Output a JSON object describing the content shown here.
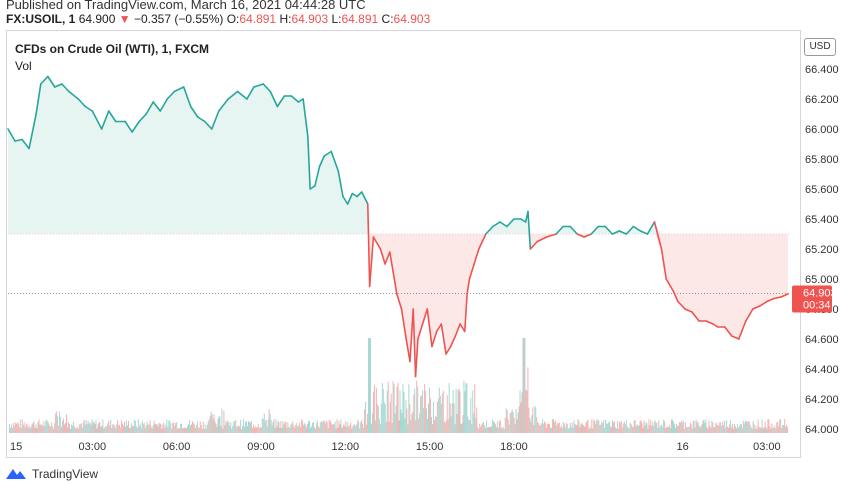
{
  "published": "Published on TradingView.com, March 16, 2021 04:44:28 UTC",
  "header": {
    "symbol": "FX:USOIL, 1",
    "last": "64.900",
    "change": "−0.357 (−0.55%)",
    "o_label": "O:",
    "o_value": "64.891",
    "h_label": "H:",
    "h_value": "64.903",
    "l_label": "L:",
    "l_value": "64.891",
    "c_label": "C:",
    "c_value": "64.903"
  },
  "legend": {
    "title": "CFDs on Crude Oil (WTI), 1, FXCM",
    "vol_label": "Vol"
  },
  "currency": "USD",
  "footer": {
    "brand": "TradingView"
  },
  "colors": {
    "up": "#26a69a",
    "down": "#ef5350",
    "area_up": "#e6f4f2",
    "area_down": "#fde8e8",
    "grid_dotted": "#999999"
  },
  "chart_data": {
    "type": "line",
    "ylim": [
      64.0,
      66.5
    ],
    "y_ticks": [
      64.0,
      64.2,
      64.4,
      64.6,
      64.8,
      65.0,
      65.2,
      65.4,
      65.6,
      65.8,
      66.0,
      66.2,
      66.4
    ],
    "y_tick_labels": [
      "64.000",
      "64.200",
      "64.400",
      "64.600",
      "64.800",
      "65.000",
      "65.200",
      "65.400",
      "65.600",
      "65.800",
      "66.000",
      "66.200",
      "66.400"
    ],
    "x_ticks": [
      {
        "label": "15",
        "t": 0
      },
      {
        "label": "03:00",
        "t": 180
      },
      {
        "label": "06:00",
        "t": 360
      },
      {
        "label": "09:00",
        "t": 540
      },
      {
        "label": "12:00",
        "t": 720
      },
      {
        "label": "15:00",
        "t": 900
      },
      {
        "label": "18:00",
        "t": 1080
      },
      {
        "label": "16",
        "t": 1440
      },
      {
        "label": "03:00",
        "t": 1620
      }
    ],
    "baseline": 65.3,
    "last_price": "64.903",
    "countdown": "00:34",
    "price_points": [
      [
        0,
        66.0
      ],
      [
        15,
        65.92
      ],
      [
        30,
        65.93
      ],
      [
        45,
        65.87
      ],
      [
        60,
        66.1
      ],
      [
        70,
        66.3
      ],
      [
        85,
        66.35
      ],
      [
        100,
        66.28
      ],
      [
        115,
        66.3
      ],
      [
        130,
        66.25
      ],
      [
        150,
        66.2
      ],
      [
        165,
        66.15
      ],
      [
        180,
        66.12
      ],
      [
        200,
        66.0
      ],
      [
        215,
        66.12
      ],
      [
        230,
        66.05
      ],
      [
        250,
        66.05
      ],
      [
        265,
        65.98
      ],
      [
        280,
        66.05
      ],
      [
        295,
        66.1
      ],
      [
        310,
        66.18
      ],
      [
        325,
        66.12
      ],
      [
        340,
        66.2
      ],
      [
        355,
        66.25
      ],
      [
        375,
        66.28
      ],
      [
        390,
        66.15
      ],
      [
        405,
        66.08
      ],
      [
        420,
        66.05
      ],
      [
        435,
        66.0
      ],
      [
        450,
        66.12
      ],
      [
        470,
        66.2
      ],
      [
        490,
        66.25
      ],
      [
        510,
        66.2
      ],
      [
        525,
        66.28
      ],
      [
        545,
        66.3
      ],
      [
        560,
        66.25
      ],
      [
        575,
        66.15
      ],
      [
        590,
        66.22
      ],
      [
        605,
        66.22
      ],
      [
        620,
        66.18
      ],
      [
        630,
        66.2
      ],
      [
        640,
        65.95
      ],
      [
        645,
        65.6
      ],
      [
        655,
        65.62
      ],
      [
        665,
        65.75
      ],
      [
        675,
        65.82
      ],
      [
        690,
        65.85
      ],
      [
        705,
        65.72
      ],
      [
        715,
        65.55
      ],
      [
        725,
        65.5
      ],
      [
        735,
        65.57
      ],
      [
        745,
        65.55
      ],
      [
        755,
        65.58
      ],
      [
        768,
        65.5
      ],
      [
        772,
        64.95
      ],
      [
        780,
        65.28
      ],
      [
        795,
        65.2
      ],
      [
        805,
        65.1
      ],
      [
        815,
        65.18
      ],
      [
        830,
        64.9
      ],
      [
        840,
        64.8
      ],
      [
        850,
        64.6
      ],
      [
        858,
        64.45
      ],
      [
        865,
        64.8
      ],
      [
        870,
        64.35
      ],
      [
        875,
        64.6
      ],
      [
        885,
        64.7
      ],
      [
        895,
        64.8
      ],
      [
        905,
        64.55
      ],
      [
        915,
        64.65
      ],
      [
        925,
        64.7
      ],
      [
        935,
        64.5
      ],
      [
        945,
        64.55
      ],
      [
        955,
        64.62
      ],
      [
        965,
        64.7
      ],
      [
        975,
        64.65
      ],
      [
        980,
        64.9
      ],
      [
        985,
        65.0
      ],
      [
        995,
        65.1
      ],
      [
        1005,
        65.2
      ],
      [
        1020,
        65.3
      ],
      [
        1035,
        65.35
      ],
      [
        1050,
        65.38
      ],
      [
        1065,
        65.35
      ],
      [
        1080,
        65.4
      ],
      [
        1095,
        65.4
      ],
      [
        1105,
        65.38
      ],
      [
        1110,
        65.45
      ],
      [
        1115,
        65.2
      ],
      [
        1130,
        65.25
      ],
      [
        1150,
        65.28
      ],
      [
        1170,
        65.3
      ],
      [
        1185,
        65.35
      ],
      [
        1200,
        65.35
      ],
      [
        1215,
        65.3
      ],
      [
        1230,
        65.28
      ],
      [
        1245,
        65.3
      ],
      [
        1260,
        65.35
      ],
      [
        1275,
        65.35
      ],
      [
        1290,
        65.3
      ],
      [
        1305,
        65.32
      ],
      [
        1320,
        65.3
      ],
      [
        1335,
        65.35
      ],
      [
        1350,
        65.32
      ],
      [
        1365,
        65.3
      ],
      [
        1380,
        65.38
      ],
      [
        1395,
        65.2
      ],
      [
        1405,
        65.0
      ],
      [
        1420,
        64.92
      ],
      [
        1430,
        64.85
      ],
      [
        1445,
        64.8
      ],
      [
        1460,
        64.78
      ],
      [
        1475,
        64.72
      ],
      [
        1490,
        64.72
      ],
      [
        1505,
        64.7
      ],
      [
        1515,
        64.68
      ],
      [
        1530,
        64.68
      ],
      [
        1545,
        64.62
      ],
      [
        1560,
        64.6
      ],
      [
        1575,
        64.72
      ],
      [
        1590,
        64.8
      ],
      [
        1605,
        64.82
      ],
      [
        1620,
        64.85
      ],
      [
        1635,
        64.87
      ],
      [
        1650,
        64.88
      ],
      [
        1665,
        64.9
      ]
    ]
  }
}
